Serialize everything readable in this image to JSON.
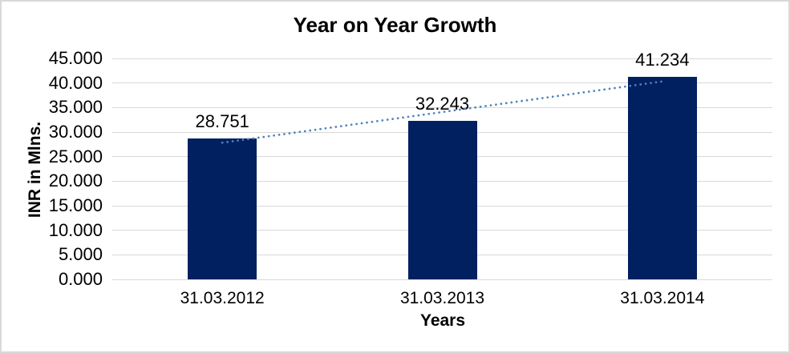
{
  "window": {
    "background": "#ffffff",
    "border_color": "#d9d9d9"
  },
  "chart_data": {
    "type": "bar",
    "title": "Year on Year Growth",
    "categories": [
      "31.03.2012",
      "31.03.2013",
      "31.03.2014"
    ],
    "values": [
      28.751,
      32.243,
      41.234
    ],
    "data_labels": [
      "28.751",
      "32.243",
      "41.234"
    ],
    "xlabel": "Years",
    "ylabel": "INR in Mlns.",
    "ylim": [
      0,
      45
    ],
    "ytick_step": 5,
    "ytick_decimals": 3,
    "ytick_labels": [
      "0.000",
      "5.000",
      "10.000",
      "15.000",
      "20.000",
      "25.000",
      "30.000",
      "35.000",
      "40.000",
      "45.000"
    ],
    "grid": true,
    "legend": "none",
    "bar_color": "#002060",
    "gridline_color": "#d9d9d9",
    "text_color": "#000000",
    "trendline": {
      "type": "linear",
      "style": "dotted",
      "color": "#4f81bd"
    }
  }
}
